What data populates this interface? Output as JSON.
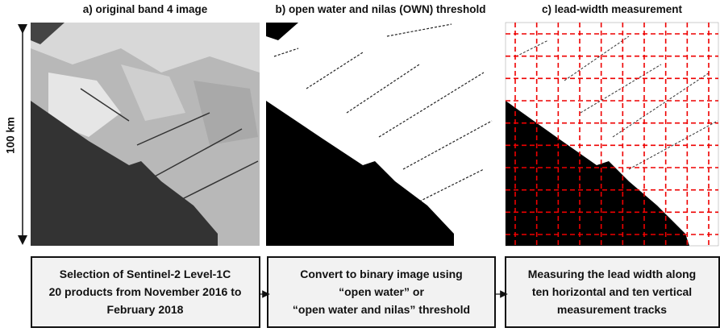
{
  "panels": [
    {
      "title": "a) original band 4 image"
    },
    {
      "title": "b) open water and nilas (OWN)  threshold"
    },
    {
      "title": "c) lead-width measurement"
    }
  ],
  "scale_label": "100 km",
  "boxes": [
    {
      "lines": [
        "Selection of Sentinel-2 Level-1C",
        "20 products from November 2016 to",
        "February 2018"
      ]
    },
    {
      "lines": [
        "Convert to binary image using",
        "“open water” or",
        "“open water and nilas” threshold"
      ]
    },
    {
      "lines": [
        "Measuring the lead width along",
        "ten horizontal and ten vertical",
        "measurement tracks"
      ]
    }
  ]
}
